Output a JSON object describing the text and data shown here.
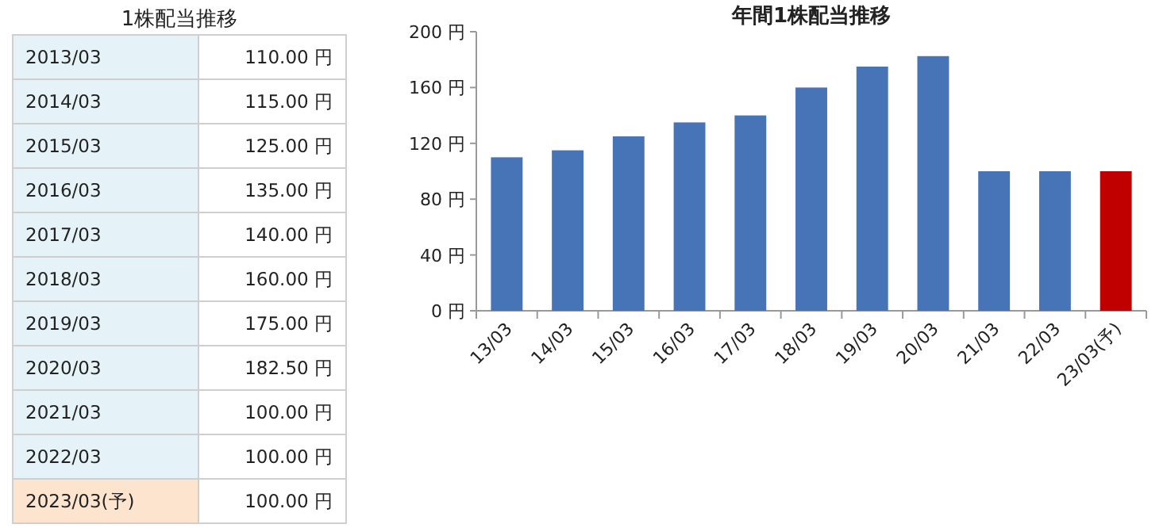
{
  "chart_data": [
    {
      "type": "other",
      "title": "1株配当推移",
      "categories": [
        "2013/03",
        "2014/03",
        "2015/03",
        "2016/03",
        "2017/03",
        "2018/03",
        "2019/03",
        "2020/03",
        "2021/03",
        "2022/03",
        "2023/03(予)"
      ],
      "value_labels": [
        "110.00 円",
        "115.00 円",
        "125.00 円",
        "135.00 円",
        "140.00 円",
        "160.00 円",
        "175.00 円",
        "182.50 円",
        "100.00 円",
        "100.00 円",
        "100.00 円"
      ],
      "colors": [
        "#e5f3f8",
        "#e5f3f8",
        "#e5f3f8",
        "#e5f3f8",
        "#e5f3f8",
        "#e5f3f8",
        "#e5f3f8",
        "#e5f3f8",
        "#e5f3f8",
        "#e5f3f8",
        "#fde4cf"
      ]
    },
    {
      "type": "bar",
      "title": "年間1株配当推移",
      "categories": [
        "13/03",
        "14/03",
        "15/03",
        "16/03",
        "17/03",
        "18/03",
        "19/03",
        "20/03",
        "21/03",
        "22/03",
        "23/03(予)"
      ],
      "values": [
        110,
        115,
        125,
        135,
        140,
        160,
        175,
        182.5,
        100,
        100,
        100
      ],
      "colors": [
        "#4674b7",
        "#4674b7",
        "#4674b7",
        "#4674b7",
        "#4674b7",
        "#4674b7",
        "#4674b7",
        "#4674b7",
        "#4674b7",
        "#4674b7",
        "#c00000"
      ],
      "ylim": [
        0,
        200
      ],
      "yticks": [
        {
          "value": 0,
          "label": "0 円"
        },
        {
          "value": 40,
          "label": "40 円"
        },
        {
          "value": 80,
          "label": "80 円"
        },
        {
          "value": 120,
          "label": "120 円"
        },
        {
          "value": 160,
          "label": "160 円"
        },
        {
          "value": 200,
          "label": "200 円"
        }
      ]
    }
  ]
}
